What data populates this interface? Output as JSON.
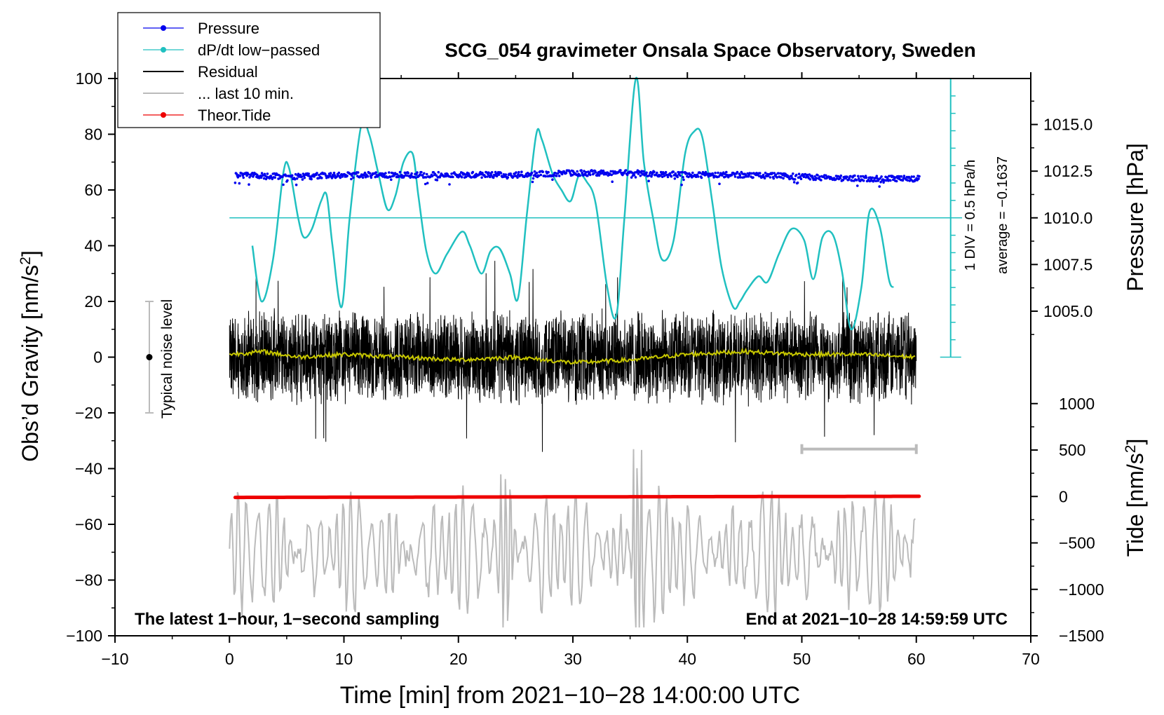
{
  "chart_data": {
    "type": "line",
    "title": "SCG_054 gravimeter Onsala Space Observatory, Sweden",
    "xlabel": "Time [min] from 2021−10−28 14:00:00 UTC",
    "ylabel_main": "Obs’d Gravity [nm/s",
    "ylabel_main_sup": "2",
    "ylabel_main_close": "]",
    "ylabel_pressure": "Pressure [hPa]",
    "ylabel_tide": "Tide [nm/s",
    "ylabel_tide_sup": "2",
    "ylabel_tide_close": "]",
    "xlim": [
      -10,
      70
    ],
    "ylim": [
      -100,
      100
    ],
    "x_ticks": [
      -10,
      0,
      10,
      20,
      30,
      40,
      50,
      60,
      70
    ],
    "x_tick_labels": [
      "−10",
      "0",
      "10",
      "20",
      "30",
      "40",
      "50",
      "60",
      "70"
    ],
    "y_ticks": [
      100,
      80,
      60,
      40,
      20,
      0,
      -20,
      -40,
      -60,
      -80,
      -100
    ],
    "y_tick_labels": [
      "100",
      "80",
      "60",
      "40",
      "20",
      "0",
      "−20",
      "−40",
      "−60",
      "−80",
      "−100"
    ],
    "pressure_ticks": [
      1015.0,
      1012.5,
      1010.0,
      1007.5,
      1005.0
    ],
    "pressure_tick_labels": [
      "1015.0",
      "1012.5",
      "1010.0",
      "1007.5",
      "1005.0"
    ],
    "pressure_map": {
      "value_a": 1010.0,
      "y_a": 50,
      "value_b": 1015.0,
      "y_b": 83.5
    },
    "tide_ticks": [
      1000,
      500,
      0,
      -500,
      -1000,
      -1500
    ],
    "tide_tick_labels": [
      "1000",
      "500",
      "0",
      "−500",
      "−1000",
      "−1500"
    ],
    "tide_map": {
      "value_a": 0,
      "y_a": -50,
      "value_b": -1500,
      "y_b": -100
    },
    "bottom_left_note": "The latest 1−hour, 1−second sampling",
    "bottom_right_note": "End at 2021−10−28 14:59:59 UTC",
    "noise_label": "Typical noise level",
    "noise_range": [
      -20,
      20
    ],
    "noise_x": -7,
    "div_label": "1 DIV = 0.5 hPa/h",
    "average_label": "average = −0.1637",
    "dpdt_reference_y": 50,
    "dpdt_scale_x": 63,
    "dpdt_scale_range": [
      0,
      100
    ],
    "dpdt_scale_step": 6.25,
    "last10_bracket": {
      "x_start": 50,
      "x_end": 60,
      "y": -33
    },
    "legend": [
      {
        "label": "Pressure",
        "color": "#0000ee",
        "marker": "dot"
      },
      {
        "label": "dP/dt low−passed",
        "color": "#20c0c0",
        "marker": "dot"
      },
      {
        "label": "Residual",
        "color": "#000000",
        "marker": "none"
      },
      {
        "label": "... last 10 min.",
        "color": "#bbbbbb",
        "marker": "none"
      },
      {
        "label": "Theor.Tide",
        "color": "#ee0000",
        "marker": "dot"
      }
    ],
    "series": [
      {
        "name": "Pressure",
        "color": "#0000ee",
        "style": "points",
        "units": "hPa",
        "x": [
          0.5,
          5,
          10,
          15,
          20,
          25,
          30,
          35,
          40,
          45,
          50,
          55,
          60.3
        ],
        "y": [
          1012.3,
          1012.2,
          1012.3,
          1012.3,
          1012.3,
          1012.3,
          1012.4,
          1012.4,
          1012.3,
          1012.3,
          1012.2,
          1012.1,
          1012.1
        ]
      },
      {
        "name": "dP/dt low−passed",
        "color": "#20c0c0",
        "style": "line",
        "units": "nm/s2 axis",
        "x": [
          2,
          2.8,
          3.8,
          4.7,
          5.2,
          6,
          6.5,
          7.2,
          8,
          8.5,
          9,
          9.8,
          10.5,
          11.5,
          12.2,
          13,
          13.8,
          14.5,
          15.2,
          16,
          16.5,
          17.2,
          18,
          19,
          20.3,
          21,
          22,
          22.8,
          23.6,
          24.5,
          25.2,
          26,
          26.8,
          27.3,
          28.2,
          29,
          29.8,
          30.5,
          31.2,
          32,
          33,
          33.8,
          34.5,
          35.5,
          36.2,
          37,
          37.8,
          38.8,
          39.8,
          40.6,
          41.3,
          42.2,
          43,
          44,
          44.6,
          45.2,
          46.2,
          47,
          48,
          49.1,
          50.2,
          51,
          51.8,
          52.7,
          53.5,
          54.3,
          55.2,
          55.9,
          56.8,
          57.6,
          58
        ],
        "y": [
          40,
          20,
          35,
          66,
          68,
          50,
          43,
          46,
          56,
          58,
          40,
          18,
          50,
          83,
          80,
          66,
          53,
          58,
          70,
          73,
          58,
          38,
          30,
          37,
          45,
          40,
          30,
          38,
          39,
          30,
          21,
          52,
          80,
          78,
          66,
          60,
          56,
          65,
          63,
          55,
          25,
          15,
          50,
          100,
          70,
          50,
          35,
          42,
          73,
          81,
          79,
          55,
          32,
          18,
          20,
          24,
          29,
          27,
          37,
          46,
          42,
          28,
          43,
          44,
          31,
          10,
          25,
          52,
          47,
          28,
          25
        ]
      },
      {
        "name": "Residual",
        "color": "#000000",
        "style": "noise",
        "x_range": [
          0,
          60
        ],
        "typical_amplitude": 15,
        "y_range": [
          -34,
          40
        ]
      },
      {
        "name": "Residual (smoothed)",
        "color": "#c8c800",
        "style": "line",
        "x": [
          0,
          3,
          6,
          10,
          15,
          20,
          25,
          30,
          35,
          40,
          45,
          50,
          55,
          60
        ],
        "y": [
          1,
          2,
          0,
          1,
          0,
          -1,
          0,
          -2,
          -1,
          1,
          2,
          1,
          1,
          0
        ]
      },
      {
        "name": "... last 10 min.",
        "color": "#bbbbbb",
        "style": "line",
        "x_range": [
          0,
          60
        ],
        "y_range": [
          -97,
          -14
        ]
      },
      {
        "name": "Theor.Tide",
        "color": "#ee0000",
        "style": "points",
        "units": "nm/s2",
        "x": [
          0.5,
          10,
          20,
          30,
          40,
          50,
          60.3
        ],
        "y": [
          -10,
          -8,
          -6,
          -4,
          -2,
          0,
          2
        ]
      }
    ]
  }
}
